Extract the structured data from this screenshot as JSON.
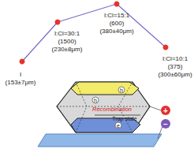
{
  "chart_data": {
    "type": "line",
    "x": [
      28,
      73,
      148,
      210
    ],
    "values": [
      111,
      161,
      184,
      129
    ],
    "point_labels": [
      "I\n(153±7μm)",
      "I:Cl=30:1\n(1500)\n(230±8μm)",
      "I:Cl=15:1\n(600)\n(380±40μm)",
      "I:Cl=10:1\n(375)\n(300±60μm)"
    ],
    "xlim": [
      0,
      246
    ],
    "ylim": [
      0,
      189
    ],
    "color": "#e8322a",
    "marker": "circle",
    "tick_labels": false,
    "grid": false
  },
  "diagram": {
    "labels": {
      "hole_top": "h",
      "hole_side": "h",
      "electron": "e",
      "recombination": "Recombination",
      "trap": "Trap state",
      "plus": "+",
      "minus": "−"
    }
  }
}
